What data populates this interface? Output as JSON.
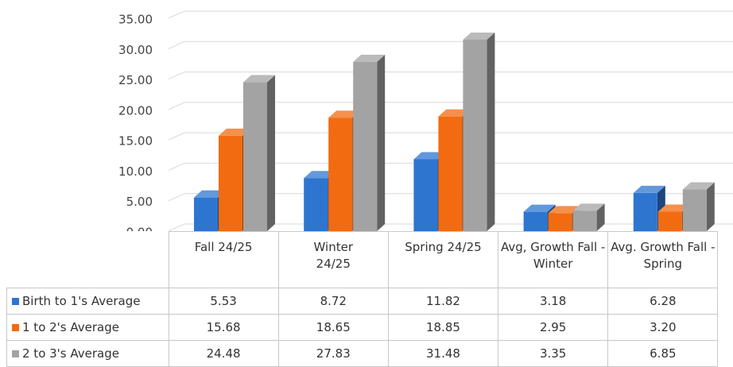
{
  "chart_data": {
    "type": "bar3d",
    "categories": [
      "Fall 24/25",
      "Winter 24/25",
      "Spring 24/25",
      "Avg, Growth Fall - Winter",
      "Avg. Growth Fall -Spring"
    ],
    "series": [
      {
        "name": "Birth to 1's  Average",
        "color": "#2e75d0",
        "values": [
          5.53,
          8.72,
          11.82,
          3.18,
          6.28
        ],
        "value_labels": [
          "5.53",
          "8.72",
          "11.82",
          "3.18",
          "6.28"
        ]
      },
      {
        "name": "1 to 2's Average",
        "color": "#f26b10",
        "values": [
          15.68,
          18.65,
          18.85,
          2.95,
          3.2
        ],
        "value_labels": [
          "15.68",
          "18.65",
          "18.85",
          "2.95",
          "3.20"
        ]
      },
      {
        "name": "2 to 3's Average",
        "color": "#a3a3a3",
        "values": [
          24.48,
          27.83,
          31.48,
          3.35,
          6.85
        ],
        "value_labels": [
          "24.48",
          "27.83",
          "31.48",
          "3.35",
          "6.85"
        ]
      }
    ],
    "ylim": [
      0,
      35
    ],
    "yticks": [
      {
        "value": 0,
        "label": "0.00"
      },
      {
        "value": 5,
        "label": "5.00"
      },
      {
        "value": 10,
        "label": "10.00"
      },
      {
        "value": 15,
        "label": "15.00"
      },
      {
        "value": 20,
        "label": "20.00"
      },
      {
        "value": 25,
        "label": "25.00"
      },
      {
        "value": 30,
        "label": "30.00"
      },
      {
        "value": 35,
        "label": "35.00"
      }
    ],
    "grid": true
  }
}
